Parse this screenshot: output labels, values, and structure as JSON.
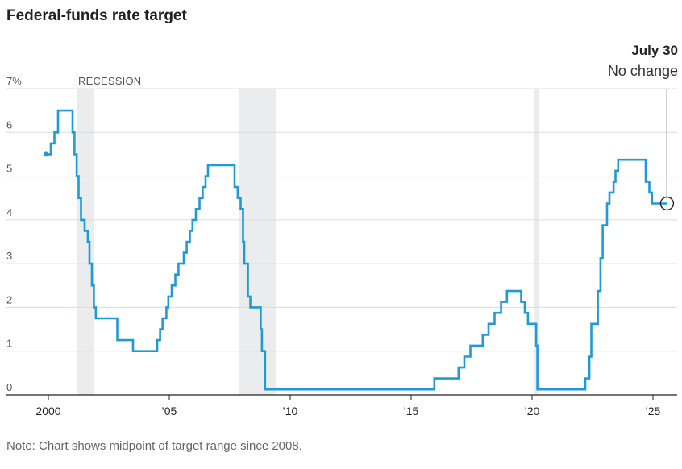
{
  "chart_data": {
    "type": "line",
    "title": "Federal-funds rate target",
    "note": "Note: Chart shows midpoint of target range since 2008.",
    "xlabel": "",
    "ylabel": "",
    "xlim": [
      1999.0,
      2026.0
    ],
    "ylim": [
      0,
      7
    ],
    "grid": true,
    "y_ticks": [
      {
        "value": 0,
        "label": "0"
      },
      {
        "value": 1,
        "label": "1"
      },
      {
        "value": 2,
        "label": "2"
      },
      {
        "value": 3,
        "label": "3"
      },
      {
        "value": 4,
        "label": "4"
      },
      {
        "value": 5,
        "label": "5"
      },
      {
        "value": 6,
        "label": "6"
      },
      {
        "value": 7,
        "label": "7%"
      }
    ],
    "x_ticks": [
      {
        "value": 2000,
        "label": "2000"
      },
      {
        "value": 2005,
        "label": "’05"
      },
      {
        "value": 2010,
        "label": "’10"
      },
      {
        "value": 2015,
        "label": "’15"
      },
      {
        "value": 2020,
        "label": "’20"
      },
      {
        "value": 2025,
        "label": "’25"
      }
    ],
    "recessions": [
      {
        "start": 2001.2,
        "end": 2001.9
      },
      {
        "start": 2007.9,
        "end": 2009.4
      },
      {
        "start": 2020.1,
        "end": 2020.3
      }
    ],
    "recession_label": "RECESSION",
    "series_color": "#1f9ad6",
    "series": [
      {
        "points": [
          [
            1999.9,
            5.5
          ],
          [
            2000.1,
            5.75
          ],
          [
            2000.25,
            6.0
          ],
          [
            2000.4,
            6.5
          ],
          [
            2001.0,
            6.0
          ],
          [
            2001.08,
            5.5
          ],
          [
            2001.17,
            5.0
          ],
          [
            2001.25,
            4.5
          ],
          [
            2001.35,
            4.0
          ],
          [
            2001.5,
            3.75
          ],
          [
            2001.63,
            3.5
          ],
          [
            2001.7,
            3.0
          ],
          [
            2001.8,
            2.5
          ],
          [
            2001.88,
            2.0
          ],
          [
            2001.96,
            1.75
          ],
          [
            2002.85,
            1.25
          ],
          [
            2003.5,
            1.0
          ],
          [
            2004.5,
            1.25
          ],
          [
            2004.62,
            1.5
          ],
          [
            2004.72,
            1.75
          ],
          [
            2004.88,
            2.0
          ],
          [
            2004.96,
            2.25
          ],
          [
            2005.1,
            2.5
          ],
          [
            2005.25,
            2.75
          ],
          [
            2005.38,
            3.0
          ],
          [
            2005.6,
            3.25
          ],
          [
            2005.72,
            3.5
          ],
          [
            2005.85,
            3.75
          ],
          [
            2005.96,
            4.0
          ],
          [
            2006.1,
            4.25
          ],
          [
            2006.25,
            4.5
          ],
          [
            2006.38,
            4.75
          ],
          [
            2006.5,
            5.0
          ],
          [
            2006.6,
            5.25
          ],
          [
            2007.7,
            4.75
          ],
          [
            2007.83,
            4.5
          ],
          [
            2007.95,
            4.25
          ],
          [
            2008.05,
            3.5
          ],
          [
            2008.1,
            3.0
          ],
          [
            2008.25,
            2.25
          ],
          [
            2008.35,
            2.0
          ],
          [
            2008.78,
            1.5
          ],
          [
            2008.83,
            1.0
          ],
          [
            2008.96,
            0.125
          ],
          [
            2015.96,
            0.375
          ],
          [
            2016.96,
            0.625
          ],
          [
            2017.2,
            0.875
          ],
          [
            2017.45,
            1.125
          ],
          [
            2017.96,
            1.375
          ],
          [
            2018.2,
            1.625
          ],
          [
            2018.45,
            1.875
          ],
          [
            2018.72,
            2.125
          ],
          [
            2018.96,
            2.375
          ],
          [
            2019.55,
            2.125
          ],
          [
            2019.7,
            1.875
          ],
          [
            2019.83,
            1.625
          ],
          [
            2020.17,
            1.125
          ],
          [
            2020.22,
            0.125
          ],
          [
            2022.2,
            0.375
          ],
          [
            2022.37,
            0.875
          ],
          [
            2022.45,
            1.625
          ],
          [
            2022.72,
            2.375
          ],
          [
            2022.83,
            3.125
          ],
          [
            2022.92,
            3.875
          ],
          [
            2023.1,
            4.375
          ],
          [
            2023.2,
            4.625
          ],
          [
            2023.37,
            4.875
          ],
          [
            2023.45,
            5.125
          ],
          [
            2023.56,
            5.375
          ],
          [
            2024.7,
            4.875
          ],
          [
            2024.85,
            4.625
          ],
          [
            2024.96,
            4.375
          ],
          [
            2025.58,
            4.375
          ]
        ]
      }
    ],
    "annotation": {
      "x": 2025.58,
      "y": 4.375,
      "date": "July 30",
      "text": "No change"
    }
  }
}
